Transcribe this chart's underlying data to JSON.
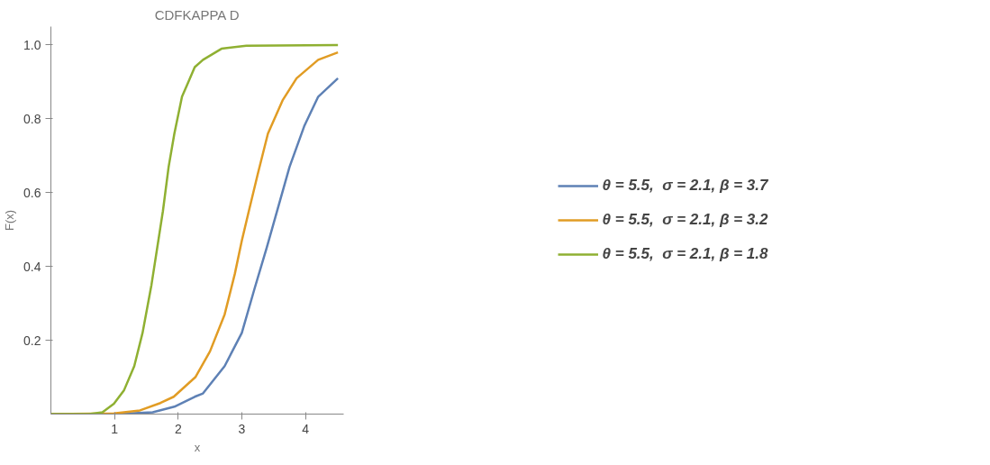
{
  "chart_data": {
    "type": "line",
    "title": "CDFKAPPA D",
    "xlabel": "x",
    "ylabel": "F(x)",
    "xlim": [
      0,
      4.6
    ],
    "ylim": [
      0,
      1.05
    ],
    "xticks": [
      1,
      2,
      3,
      4
    ],
    "yticks": [
      0.2,
      0.4,
      0.6,
      0.8,
      {
        "value": 1.0,
        "label": "1.0"
      }
    ],
    "grid": false,
    "legend": "right",
    "marker": "none",
    "line_style": "solid",
    "series": [
      {
        "name": "θ = 5.5,  σ = 2.1, β = 3.7",
        "color": "#5e81b5",
        "x": [
          0,
          1.0,
          1.6,
          1.94,
          2.26,
          2.39,
          2.73,
          3.0,
          3.2,
          3.39,
          3.57,
          3.75,
          3.98,
          4.2,
          4.51
        ],
        "values": [
          0,
          0,
          0.005,
          0.02,
          0.047,
          0.056,
          0.13,
          0.22,
          0.34,
          0.45,
          0.56,
          0.67,
          0.78,
          0.86,
          0.91
        ]
      },
      {
        "name": "θ = 5.5,  σ = 2.1, β = 3.2",
        "color": "#e19c24",
        "x": [
          0,
          0.99,
          1.4,
          1.72,
          1.93,
          2.27,
          2.5,
          2.73,
          2.89,
          3.0,
          3.11,
          3.25,
          3.41,
          3.64,
          3.86,
          4.2,
          4.51
        ],
        "values": [
          0,
          0.002,
          0.01,
          0.03,
          0.047,
          0.1,
          0.17,
          0.27,
          0.38,
          0.47,
          0.55,
          0.65,
          0.76,
          0.85,
          0.91,
          0.96,
          0.98
        ]
      },
      {
        "name": "θ = 5.5,  σ = 2.1, β = 1.8",
        "color": "#8fb032",
        "x": [
          0,
          0.6,
          0.81,
          0.99,
          1.15,
          1.31,
          1.44,
          1.58,
          1.67,
          1.76,
          1.85,
          1.94,
          2.06,
          2.16,
          2.26,
          2.39,
          2.68,
          3.07,
          4.51
        ],
        "values": [
          0,
          0,
          0.005,
          0.028,
          0.065,
          0.13,
          0.22,
          0.35,
          0.45,
          0.55,
          0.67,
          0.76,
          0.86,
          0.9,
          0.94,
          0.96,
          0.99,
          0.998,
          1.0
        ]
      }
    ]
  }
}
